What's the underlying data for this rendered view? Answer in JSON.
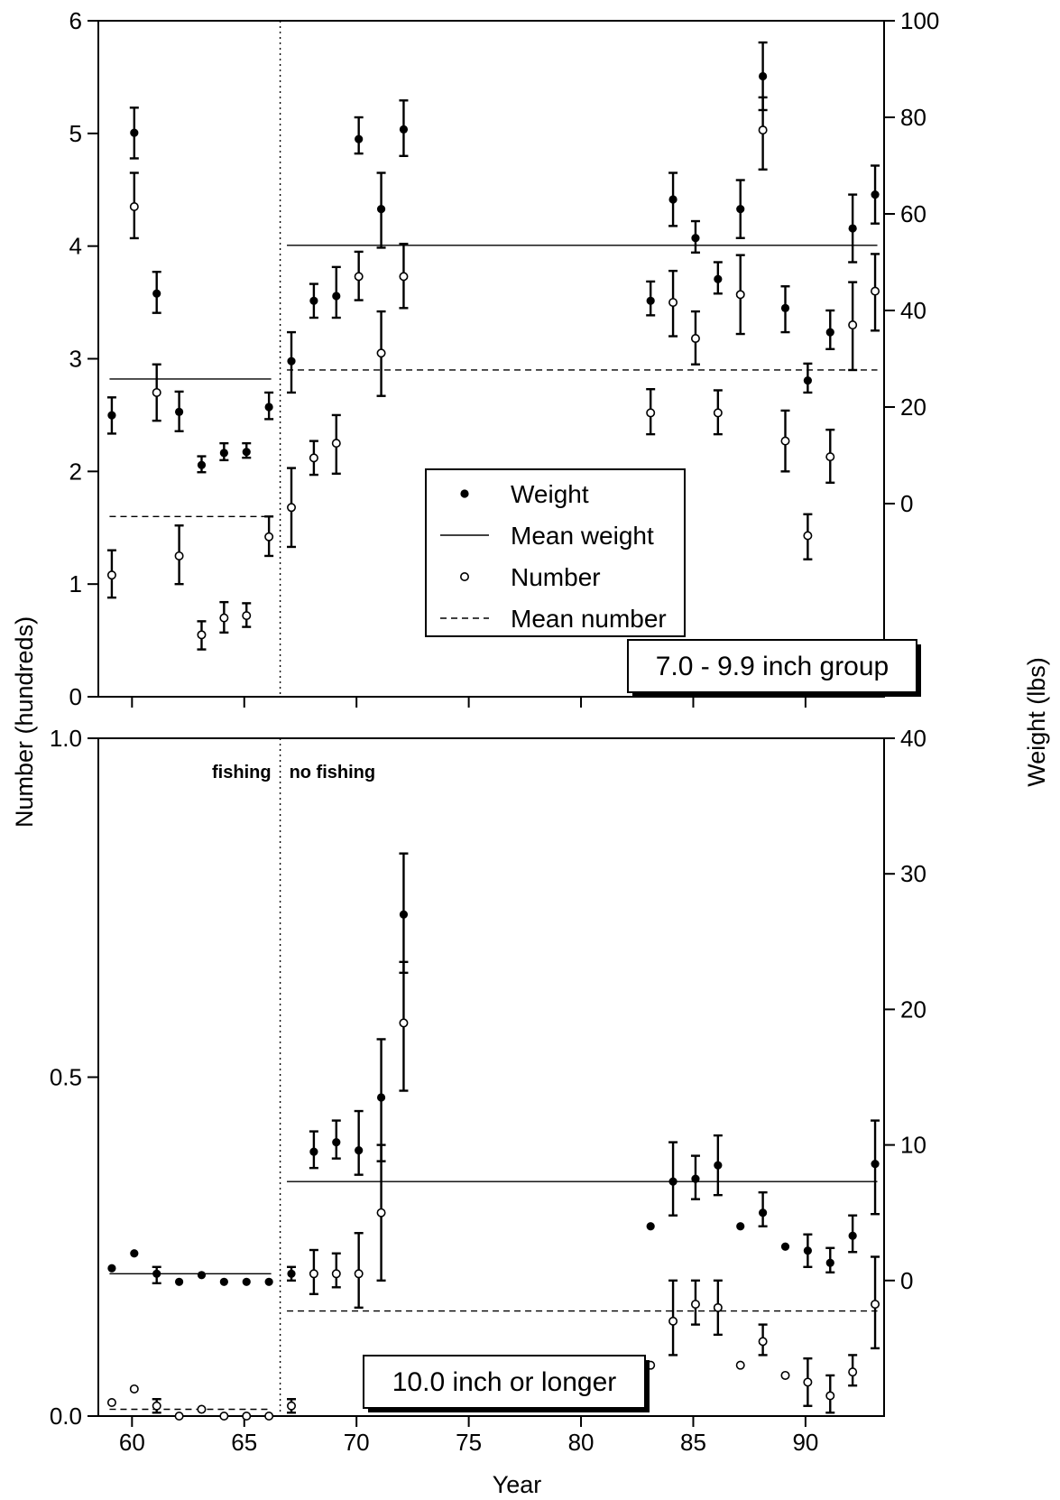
{
  "figure": {
    "y_left_title": "Number (hundreds)",
    "y_right_title": "Weight (lbs)",
    "x_title": "Year",
    "x_ticks": [
      60,
      65,
      70,
      75,
      80,
      85,
      90
    ],
    "regime_break_year": 66.6,
    "regime_labels": {
      "before": "fishing",
      "after": "no fishing"
    }
  },
  "legend": {
    "weight": "Weight",
    "mean_weight": "Mean weight",
    "number": "Number",
    "mean_number": "Mean number"
  },
  "chart_data": [
    {
      "type": "scatter",
      "panel": "top",
      "title": "7.0 - 9.9 inch group",
      "xlabel": "Year",
      "ylabel": "Number (hundreds)",
      "y2label": "Weight (lbs)",
      "xlim": [
        58.5,
        93.5
      ],
      "ylim_left": [
        0,
        6
      ],
      "yticks_left": [
        0,
        1,
        2,
        3,
        4,
        5,
        6
      ],
      "ylim_right": [
        -40,
        100
      ],
      "yticks_right": [
        0,
        20,
        40,
        60,
        80,
        100
      ],
      "series": [
        {
          "name": "Weight",
          "axis": "right",
          "marker": "filled",
          "points": [
            {
              "x": 59.1,
              "y": 18.3,
              "lo": 14.5,
              "hi": 22.0
            },
            {
              "x": 60.1,
              "y": 76.8,
              "lo": 71.5,
              "hi": 82.0
            },
            {
              "x": 61.1,
              "y": 43.5,
              "lo": 39.5,
              "hi": 48.0
            },
            {
              "x": 62.1,
              "y": 19.0,
              "lo": 15.0,
              "hi": 23.2
            },
            {
              "x": 63.1,
              "y": 8.0,
              "lo": 6.5,
              "hi": 9.8
            },
            {
              "x": 64.1,
              "y": 10.5,
              "lo": 9.0,
              "hi": 12.5
            },
            {
              "x": 65.1,
              "y": 10.7,
              "lo": 9.5,
              "hi": 12.5
            },
            {
              "x": 66.1,
              "y": 20.0,
              "lo": 17.5,
              "hi": 23.0
            },
            {
              "x": 67.1,
              "y": 29.5,
              "lo": 23.0,
              "hi": 35.5
            },
            {
              "x": 68.1,
              "y": 42.0,
              "lo": 38.5,
              "hi": 45.5
            },
            {
              "x": 69.1,
              "y": 43.0,
              "lo": 38.5,
              "hi": 49.0
            },
            {
              "x": 70.1,
              "y": 75.5,
              "lo": 72.5,
              "hi": 80.0
            },
            {
              "x": 71.1,
              "y": 61.0,
              "lo": 53.0,
              "hi": 68.5
            },
            {
              "x": 72.1,
              "y": 77.5,
              "lo": 72.0,
              "hi": 83.5
            },
            {
              "x": 83.1,
              "y": 42.0,
              "lo": 39.0,
              "hi": 46.0
            },
            {
              "x": 84.1,
              "y": 63.0,
              "lo": 57.5,
              "hi": 68.5
            },
            {
              "x": 85.1,
              "y": 55.0,
              "lo": 52.0,
              "hi": 58.5
            },
            {
              "x": 86.1,
              "y": 46.5,
              "lo": 43.5,
              "hi": 50.0
            },
            {
              "x": 87.1,
              "y": 61.0,
              "lo": 55.0,
              "hi": 67.0
            },
            {
              "x": 88.1,
              "y": 88.5,
              "lo": 81.5,
              "hi": 95.5
            },
            {
              "x": 89.1,
              "y": 40.5,
              "lo": 35.5,
              "hi": 45.0
            },
            {
              "x": 90.1,
              "y": 25.5,
              "lo": 23.0,
              "hi": 29.0
            },
            {
              "x": 91.1,
              "y": 35.5,
              "lo": 32.0,
              "hi": 40.0
            },
            {
              "x": 92.1,
              "y": 57.0,
              "lo": 50.0,
              "hi": 64.0
            },
            {
              "x": 93.1,
              "y": 64.0,
              "lo": 58.0,
              "hi": 70.0
            }
          ]
        },
        {
          "name": "Number",
          "axis": "left",
          "marker": "open",
          "points": [
            {
              "x": 59.1,
              "y": 1.08,
              "lo": 0.88,
              "hi": 1.3
            },
            {
              "x": 60.1,
              "y": 4.35,
              "lo": 4.07,
              "hi": 4.65
            },
            {
              "x": 61.1,
              "y": 2.7,
              "lo": 2.45,
              "hi": 2.95
            },
            {
              "x": 62.1,
              "y": 1.25,
              "lo": 1.0,
              "hi": 1.52
            },
            {
              "x": 63.1,
              "y": 0.55,
              "lo": 0.42,
              "hi": 0.67
            },
            {
              "x": 64.1,
              "y": 0.7,
              "lo": 0.57,
              "hi": 0.84
            },
            {
              "x": 65.1,
              "y": 0.72,
              "lo": 0.62,
              "hi": 0.83
            },
            {
              "x": 66.1,
              "y": 1.42,
              "lo": 1.25,
              "hi": 1.6
            },
            {
              "x": 67.1,
              "y": 1.68,
              "lo": 1.33,
              "hi": 2.03
            },
            {
              "x": 68.1,
              "y": 2.12,
              "lo": 1.97,
              "hi": 2.27
            },
            {
              "x": 69.1,
              "y": 2.25,
              "lo": 1.98,
              "hi": 2.5
            },
            {
              "x": 70.1,
              "y": 3.73,
              "lo": 3.52,
              "hi": 3.95
            },
            {
              "x": 71.1,
              "y": 3.05,
              "lo": 2.67,
              "hi": 3.42
            },
            {
              "x": 72.1,
              "y": 3.73,
              "lo": 3.45,
              "hi": 4.02
            },
            {
              "x": 83.1,
              "y": 2.52,
              "lo": 2.33,
              "hi": 2.73
            },
            {
              "x": 84.1,
              "y": 3.5,
              "lo": 3.2,
              "hi": 3.78
            },
            {
              "x": 85.1,
              "y": 3.18,
              "lo": 2.95,
              "hi": 3.42
            },
            {
              "x": 86.1,
              "y": 2.52,
              "lo": 2.33,
              "hi": 2.72
            },
            {
              "x": 87.1,
              "y": 3.57,
              "lo": 3.22,
              "hi": 3.92
            },
            {
              "x": 88.1,
              "y": 5.03,
              "lo": 4.68,
              "hi": 5.32
            },
            {
              "x": 89.1,
              "y": 2.27,
              "lo": 2.0,
              "hi": 2.54
            },
            {
              "x": 90.1,
              "y": 1.43,
              "lo": 1.22,
              "hi": 1.62
            },
            {
              "x": 91.1,
              "y": 2.13,
              "lo": 1.9,
              "hi": 2.37
            },
            {
              "x": 92.1,
              "y": 3.3,
              "lo": 2.9,
              "hi": 3.68
            },
            {
              "x": 93.1,
              "y": 3.6,
              "lo": 3.25,
              "hi": 3.93
            }
          ]
        },
        {
          "name": "Mean weight",
          "axis": "right",
          "style": "solid",
          "segments": [
            {
              "x": [
                59.0,
                66.2
              ],
              "y": 25.8
            },
            {
              "x": [
                66.9,
                93.2
              ],
              "y": 53.5
            }
          ]
        },
        {
          "name": "Mean number",
          "axis": "left",
          "style": "dashed",
          "segments": [
            {
              "x": [
                59.0,
                66.2
              ],
              "y": 1.6
            },
            {
              "x": [
                66.9,
                93.2
              ],
              "y": 2.9
            }
          ]
        }
      ]
    },
    {
      "type": "scatter",
      "panel": "bottom",
      "title": "10.0 inch or longer",
      "xlabel": "Year",
      "ylabel": "Number (hundreds)",
      "y2label": "Weight (lbs)",
      "xlim": [
        58.5,
        93.5
      ],
      "ylim_left": [
        0,
        1
      ],
      "yticks_left": [
        0.0,
        0.5,
        1.0
      ],
      "ylim_right": [
        -10,
        40
      ],
      "yticks_right": [
        0,
        10,
        20,
        30,
        40
      ],
      "series": [
        {
          "name": "Weight",
          "axis": "right",
          "marker": "filled",
          "points": [
            {
              "x": 59.1,
              "y": 0.9,
              "lo": 0.9,
              "hi": 0.9
            },
            {
              "x": 60.1,
              "y": 2.0,
              "lo": 2.0,
              "hi": 2.0
            },
            {
              "x": 61.1,
              "y": 0.5,
              "lo": -0.2,
              "hi": 1.0
            },
            {
              "x": 62.1,
              "y": -0.1,
              "lo": -0.1,
              "hi": -0.1
            },
            {
              "x": 63.1,
              "y": 0.4,
              "lo": 0.4,
              "hi": 0.4
            },
            {
              "x": 64.1,
              "y": -0.1,
              "lo": -0.1,
              "hi": -0.1
            },
            {
              "x": 65.1,
              "y": -0.1,
              "lo": -0.1,
              "hi": -0.1
            },
            {
              "x": 66.1,
              "y": -0.1,
              "lo": -0.1,
              "hi": -0.1
            },
            {
              "x": 67.1,
              "y": 0.5,
              "lo": 0.0,
              "hi": 1.0
            },
            {
              "x": 68.1,
              "y": 9.5,
              "lo": 8.3,
              "hi": 11.0
            },
            {
              "x": 69.1,
              "y": 10.2,
              "lo": 9.0,
              "hi": 11.8
            },
            {
              "x": 70.1,
              "y": 9.6,
              "lo": 7.8,
              "hi": 12.5
            },
            {
              "x": 71.1,
              "y": 13.5,
              "lo": 8.8,
              "hi": 17.8
            },
            {
              "x": 72.1,
              "y": 27.0,
              "lo": 22.7,
              "hi": 31.5
            },
            {
              "x": 83.1,
              "y": 4.0,
              "lo": 4.0,
              "hi": 4.0
            },
            {
              "x": 84.1,
              "y": 7.3,
              "lo": 4.8,
              "hi": 10.2
            },
            {
              "x": 85.1,
              "y": 7.5,
              "lo": 6.0,
              "hi": 9.2
            },
            {
              "x": 86.1,
              "y": 8.5,
              "lo": 6.3,
              "hi": 10.7
            },
            {
              "x": 87.1,
              "y": 4.0,
              "lo": 4.0,
              "hi": 4.0
            },
            {
              "x": 88.1,
              "y": 5.0,
              "lo": 4.0,
              "hi": 6.5
            },
            {
              "x": 89.1,
              "y": 2.5,
              "lo": 2.5,
              "hi": 2.5
            },
            {
              "x": 90.1,
              "y": 2.2,
              "lo": 1.0,
              "hi": 3.4
            },
            {
              "x": 91.1,
              "y": 1.3,
              "lo": 0.6,
              "hi": 2.4
            },
            {
              "x": 92.1,
              "y": 3.3,
              "lo": 2.1,
              "hi": 4.8
            },
            {
              "x": 93.1,
              "y": 8.6,
              "lo": 4.9,
              "hi": 11.8
            }
          ]
        },
        {
          "name": "Number",
          "axis": "left",
          "marker": "open",
          "points": [
            {
              "x": 59.1,
              "y": 0.02,
              "lo": 0.02,
              "hi": 0.02
            },
            {
              "x": 60.1,
              "y": 0.04,
              "lo": 0.04,
              "hi": 0.04
            },
            {
              "x": 61.1,
              "y": 0.015,
              "lo": 0.005,
              "hi": 0.025
            },
            {
              "x": 62.1,
              "y": 0.0,
              "lo": 0.0,
              "hi": 0.0
            },
            {
              "x": 63.1,
              "y": 0.01,
              "lo": 0.01,
              "hi": 0.01
            },
            {
              "x": 64.1,
              "y": 0.0,
              "lo": 0.0,
              "hi": 0.0
            },
            {
              "x": 65.1,
              "y": 0.0,
              "lo": 0.0,
              "hi": 0.0
            },
            {
              "x": 66.1,
              "y": 0.0,
              "lo": 0.0,
              "hi": 0.0
            },
            {
              "x": 67.1,
              "y": 0.015,
              "lo": 0.005,
              "hi": 0.025
            },
            {
              "x": 68.1,
              "y": 0.21,
              "lo": 0.18,
              "hi": 0.245
            },
            {
              "x": 69.1,
              "y": 0.21,
              "lo": 0.19,
              "hi": 0.24
            },
            {
              "x": 70.1,
              "y": 0.21,
              "lo": 0.16,
              "hi": 0.27
            },
            {
              "x": 71.1,
              "y": 0.3,
              "lo": 0.2,
              "hi": 0.4
            },
            {
              "x": 72.1,
              "y": 0.58,
              "lo": 0.48,
              "hi": 0.67
            },
            {
              "x": 83.1,
              "y": 0.075,
              "lo": 0.075,
              "hi": 0.075
            },
            {
              "x": 84.1,
              "y": 0.14,
              "lo": 0.09,
              "hi": 0.2
            },
            {
              "x": 85.1,
              "y": 0.165,
              "lo": 0.135,
              "hi": 0.2
            },
            {
              "x": 86.1,
              "y": 0.16,
              "lo": 0.12,
              "hi": 0.2
            },
            {
              "x": 87.1,
              "y": 0.075,
              "lo": 0.075,
              "hi": 0.075
            },
            {
              "x": 88.1,
              "y": 0.11,
              "lo": 0.09,
              "hi": 0.135
            },
            {
              "x": 89.1,
              "y": 0.06,
              "lo": 0.06,
              "hi": 0.06
            },
            {
              "x": 90.1,
              "y": 0.05,
              "lo": 0.015,
              "hi": 0.085
            },
            {
              "x": 91.1,
              "y": 0.03,
              "lo": 0.005,
              "hi": 0.06
            },
            {
              "x": 92.1,
              "y": 0.065,
              "lo": 0.045,
              "hi": 0.09
            },
            {
              "x": 93.1,
              "y": 0.165,
              "lo": 0.1,
              "hi": 0.235
            }
          ]
        },
        {
          "name": "Mean weight",
          "axis": "right",
          "style": "solid",
          "segments": [
            {
              "x": [
                59.0,
                66.2
              ],
              "y": 0.5
            },
            {
              "x": [
                66.9,
                93.2
              ],
              "y": 7.3
            }
          ]
        },
        {
          "name": "Mean number",
          "axis": "left",
          "style": "dashed",
          "segments": [
            {
              "x": [
                59.0,
                66.2
              ],
              "y": 0.01
            },
            {
              "x": [
                66.9,
                93.2
              ],
              "y": 0.155
            }
          ]
        }
      ]
    }
  ]
}
